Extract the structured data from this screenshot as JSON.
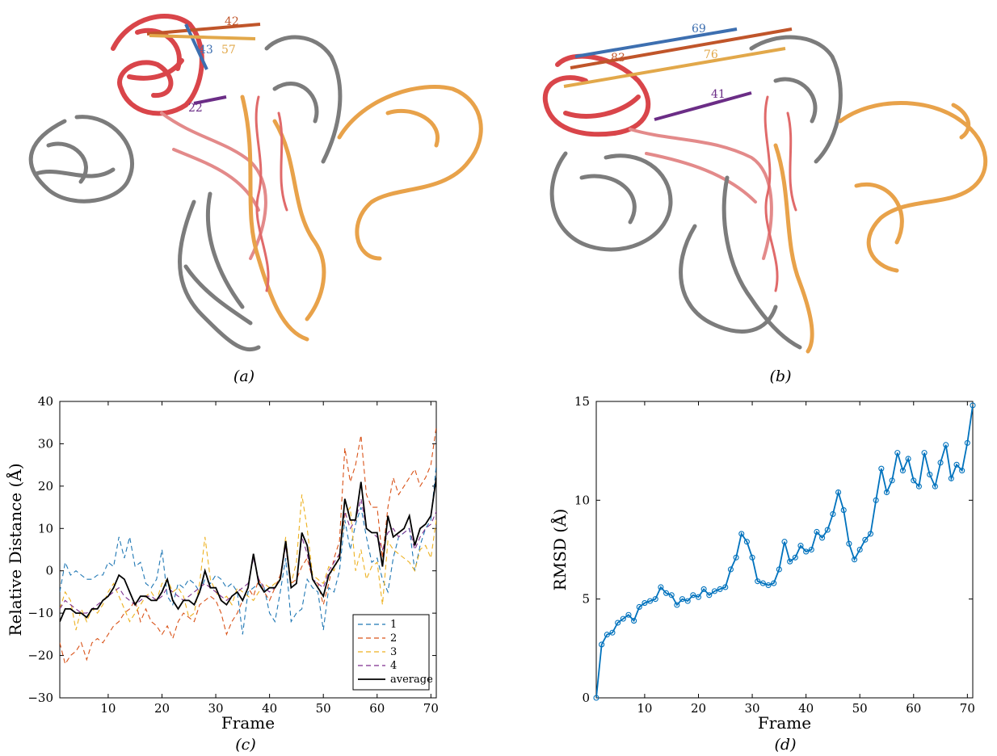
{
  "captions": {
    "a": "(a)",
    "b": "(b)",
    "c": "(c)",
    "d": "(d)"
  },
  "structure_a": {
    "distance_labels": [
      {
        "text": "42",
        "color": "#c0552a"
      },
      {
        "text": "43",
        "color": "#3d6fb0"
      },
      {
        "text": "57",
        "color": "#e2a84a"
      },
      {
        "text": "22",
        "color": "#6b2d86"
      }
    ],
    "colors": {
      "chain_red": "#d9454a",
      "chain_pink": "#e38a8a",
      "chain_orange": "#e8a24a",
      "chain_gray": "#7c7c7c"
    }
  },
  "structure_b": {
    "distance_labels": [
      {
        "text": "69",
        "color": "#3d6fb0"
      },
      {
        "text": "83",
        "color": "#c0552a"
      },
      {
        "text": "76",
        "color": "#e2a84a"
      },
      {
        "text": "41",
        "color": "#6b2d86"
      }
    ]
  },
  "chart_data": [
    {
      "type": "line",
      "panel": "c",
      "xlabel": "Frame",
      "ylabel": "Relative Distance (Å)",
      "xlim": [
        1,
        71
      ],
      "ylim": [
        -30,
        40
      ],
      "xticks": [
        10,
        20,
        30,
        40,
        50,
        60,
        70
      ],
      "yticks": [
        -30,
        -20,
        -10,
        0,
        10,
        20,
        30,
        40
      ],
      "ytick_labels": [
        "−30",
        "−20",
        "−10",
        "0",
        "10",
        "20",
        "30",
        "40"
      ],
      "legend_position": "bottom-right",
      "series": [
        {
          "name": "1",
          "color": "#1f77b4",
          "dashed": true,
          "values": [
            -5,
            2,
            -1,
            0,
            -1,
            -2,
            -2,
            -1,
            -1,
            2,
            1,
            8,
            3,
            8,
            1,
            2,
            -3,
            -4,
            -2,
            5,
            -6,
            -8,
            -3,
            -4,
            -2,
            -3,
            -5,
            -2,
            -3,
            -1,
            -2,
            -4,
            -3,
            -5,
            -15,
            -5,
            -4,
            -3,
            -4,
            -10,
            -12,
            -5,
            3,
            -12,
            -10,
            -9,
            -2,
            -4,
            -5,
            -14,
            -4,
            -5,
            0,
            12,
            5,
            11,
            15,
            8,
            2,
            3,
            -2,
            -5,
            3,
            8,
            9,
            10,
            0,
            6,
            10,
            12,
            25
          ]
        },
        {
          "name": "2",
          "color": "#d95319",
          "dashed": true,
          "values": [
            -17,
            -22,
            -20,
            -19,
            -17,
            -21,
            -17,
            -16,
            -17,
            -15,
            -13,
            -12,
            -10,
            -9,
            -7,
            -12,
            -9,
            -12,
            -13,
            -15,
            -13,
            -16,
            -12,
            -10,
            -11,
            -12,
            -8,
            -7,
            -6,
            -7,
            -10,
            -15,
            -12,
            -10,
            -7,
            -4,
            -6,
            -2,
            -5,
            -7,
            -4,
            -1,
            6,
            -3,
            -2,
            1,
            3,
            -2,
            -3,
            -8,
            -3,
            3,
            7,
            29,
            21,
            25,
            32,
            18,
            15,
            15,
            3,
            15,
            22,
            18,
            20,
            22,
            24,
            20,
            22,
            25,
            34
          ]
        },
        {
          "name": "3",
          "color": "#edb120",
          "dashed": true,
          "values": [
            -9,
            -5,
            -7,
            -14,
            -9,
            -12,
            -9,
            -10,
            -8,
            -5,
            -3,
            -6,
            -9,
            -12,
            -10,
            -8,
            -6,
            -5,
            -7,
            -3,
            -2,
            -5,
            -4,
            -6,
            -11,
            -10,
            -3,
            8,
            -2,
            -5,
            -7,
            -6,
            -8,
            -4,
            -5,
            -6,
            -7,
            -5,
            -3,
            -4,
            -3,
            -2,
            8,
            -3,
            2,
            18,
            10,
            -1,
            -2,
            -3,
            1,
            0,
            4,
            13,
            15,
            0,
            5,
            -2,
            1,
            2,
            -8,
            7,
            5,
            4,
            3,
            2,
            0,
            5,
            6,
            3,
            12
          ]
        },
        {
          "name": "4",
          "color": "#7e2f8e",
          "dashed": true,
          "values": [
            -9,
            -7,
            -8,
            -9,
            -10,
            -10,
            -9,
            -8,
            -7,
            -6,
            -5,
            -4,
            -6,
            -7,
            -8,
            -7,
            -6,
            -6,
            -7,
            -6,
            -4,
            -5,
            -6,
            -7,
            -6,
            -5,
            -4,
            -3,
            -4,
            -5,
            -6,
            -7,
            -6,
            -5,
            -4,
            -3,
            3,
            -2,
            -4,
            -5,
            -4,
            -2,
            6,
            -4,
            -3,
            8,
            4,
            -2,
            -3,
            -4,
            0,
            2,
            4,
            14,
            10,
            12,
            17,
            10,
            9,
            8,
            5,
            9,
            10,
            8,
            9,
            10,
            5,
            8,
            10,
            11,
            14
          ]
        },
        {
          "name": "average",
          "color": "#000000",
          "dashed": false,
          "values": [
            -12,
            -9,
            -9,
            -10,
            -10,
            -11,
            -9,
            -9,
            -7,
            -6,
            -4,
            -1,
            -2,
            -5,
            -8,
            -6,
            -6,
            -7,
            -7,
            -5,
            -2,
            -7,
            -9,
            -7,
            -7,
            -8,
            -5,
            0,
            -4,
            -4,
            -7,
            -8,
            -6,
            -5,
            -7,
            -4,
            4,
            -3,
            -5,
            -4,
            -4,
            -2,
            7,
            -4,
            -3,
            9,
            6,
            -2,
            -4,
            -6,
            -1,
            1,
            3,
            17,
            12,
            12,
            21,
            10,
            9,
            9,
            1,
            13,
            8,
            9,
            10,
            13,
            6,
            10,
            11,
            13,
            22
          ]
        }
      ]
    },
    {
      "type": "line",
      "panel": "d",
      "xlabel": "Frame",
      "ylabel": "RMSD (Å)",
      "xlim": [
        1,
        71
      ],
      "ylim": [
        0,
        15
      ],
      "xticks": [
        10,
        20,
        30,
        40,
        50,
        60,
        70
      ],
      "yticks": [
        0,
        5,
        10,
        15
      ],
      "ytick_labels": [
        "0",
        "5",
        "10",
        "15"
      ],
      "series": [
        {
          "name": "",
          "color": "#0072bd",
          "marker": "circle",
          "values": [
            0,
            2.7,
            3.2,
            3.3,
            3.8,
            4.0,
            4.2,
            3.9,
            4.6,
            4.8,
            4.9,
            5.0,
            5.6,
            5.3,
            5.2,
            4.7,
            5.0,
            4.9,
            5.2,
            5.1,
            5.5,
            5.2,
            5.4,
            5.5,
            5.6,
            6.5,
            7.1,
            8.3,
            7.9,
            7.1,
            5.9,
            5.8,
            5.7,
            5.8,
            6.5,
            7.9,
            6.9,
            7.1,
            7.7,
            7.4,
            7.5,
            8.4,
            8.1,
            8.5,
            9.3,
            10.4,
            9.5,
            7.8,
            7.0,
            7.5,
            8.0,
            8.3,
            10.0,
            11.6,
            10.4,
            11.0,
            12.4,
            11.5,
            12.1,
            11.0,
            10.7,
            12.4,
            11.3,
            10.7,
            11.9,
            12.8,
            11.1,
            11.8,
            11.5,
            12.9,
            14.8
          ]
        }
      ]
    }
  ]
}
